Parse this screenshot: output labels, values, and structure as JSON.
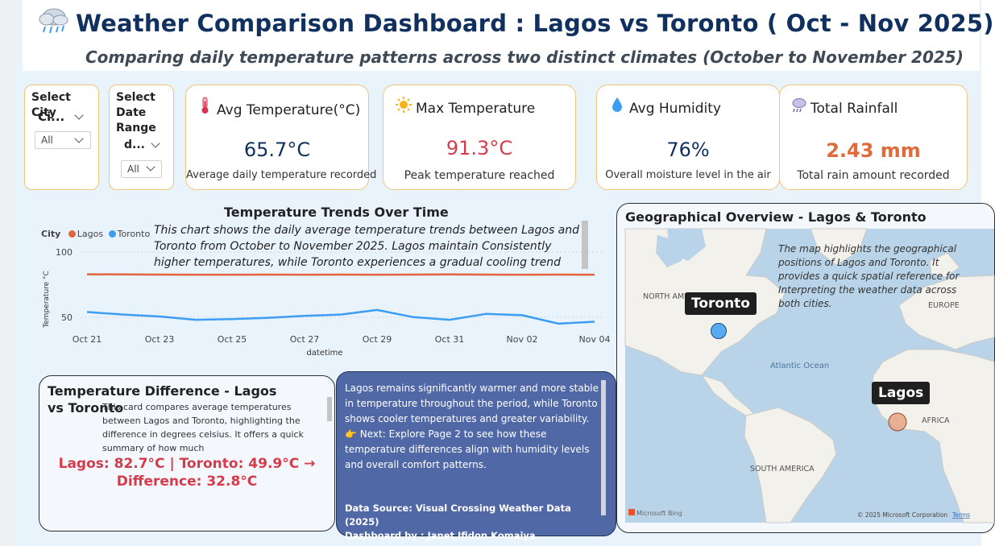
{
  "header": {
    "title": "Weather Comparison Dashboard : Lagos vs Toronto ( Oct - Nov 2025)",
    "subtitle": "Comparing daily temperature patterns across two distinct climates (October to November 2025)"
  },
  "slicers": {
    "city": {
      "label": "Select City",
      "selected": "Ci...",
      "option": "All"
    },
    "date": {
      "label": "Select Date Range",
      "selected": "d...",
      "option": "All"
    }
  },
  "kpis": [
    {
      "icon": "thermometer-icon",
      "title": "Avg Temperature(°C)",
      "value": "65.7°C",
      "caption": "Average daily temperature recorded",
      "color": "#10305f"
    },
    {
      "icon": "sun-icon",
      "title": "Max Temperature",
      "value": "91.3°C",
      "caption": "Peak temperature reached",
      "color": "#d43b4b"
    },
    {
      "icon": "droplet-icon",
      "title": "Avg Humidity",
      "value": "76%",
      "caption": "Overall moisture level in the air",
      "color": "#10305f"
    },
    {
      "icon": "rain-cloud-icon",
      "title": "Total Rainfall",
      "value": "2.43 mm",
      "caption": "Total rain amount recorded",
      "color": "#e06a3a"
    }
  ],
  "trend": {
    "title": "Temperature Trends Over Time",
    "legend_title": "City",
    "note": "This chart shows the daily average temperature trends between Lagos and Toronto from October to November 2025. Lagos maintain Consistently higher temperatures, while Toronto experiences a gradual cooling trend"
  },
  "chart_data": {
    "type": "line",
    "title": "Temperature Trends Over Time",
    "xlabel": "datetime",
    "ylabel": "Temperature °C",
    "ylim": [
      40,
      100
    ],
    "y_ticks": [
      50,
      100
    ],
    "x_ticks": [
      "Oct 21",
      "Oct 23",
      "Oct 25",
      "Oct 27",
      "Oct 29",
      "Oct 31",
      "Nov 02",
      "Nov 04"
    ],
    "x": [
      "Oct 21",
      "Oct 22",
      "Oct 23",
      "Oct 24",
      "Oct 25",
      "Oct 26",
      "Oct 27",
      "Oct 28",
      "Oct 29",
      "Oct 30",
      "Oct 31",
      "Nov 01",
      "Nov 02",
      "Nov 03",
      "Nov 04"
    ],
    "legend": "top-left",
    "grid": true,
    "series": [
      {
        "name": "Lagos",
        "color": "#e0643c",
        "values": [
          82.9,
          82.8,
          82.7,
          82.6,
          82.6,
          82.7,
          82.6,
          82.7,
          82.6,
          82.7,
          82.8,
          82.7,
          82.6,
          82.7,
          82.6
        ]
      },
      {
        "name": "Toronto",
        "color": "#3d9df2",
        "values": [
          54,
          52,
          50.5,
          48,
          48.5,
          49.5,
          51,
          52,
          55.5,
          50,
          48,
          52.5,
          51.5,
          45,
          46.5
        ]
      }
    ]
  },
  "difference": {
    "title": "Temperature Difference - Lagos vs Toronto",
    "desc": "This card compares average temperatures between Lagos and Toronto, highlighting the difference in degrees celsius. It offers a quick summary of how much",
    "line1": "Lagos: 82.7°C | Toronto: 49.9°C →",
    "line2": "Difference: 32.8°C"
  },
  "insight": {
    "text": "Lagos remains significantly warmer and more stable in temperature throughout the period, while Toronto shows cooler temperatures and greater variability.",
    "next": "👉 Next: Explore Page 2 to see how these temperature differences align with humidity levels and overall comfort patterns.",
    "source": "Data Source: Visual Crossing Weather Data (2025)",
    "author": "Dashboard by :  Janet Ifidon Komaiya"
  },
  "map": {
    "title": "Geographical Overview - Lagos & Toronto",
    "note": "The map highlights the geographical positions of Lagos and Toronto. It provides a quick spatial reference for Interpreting the weather data across both cities.",
    "labels": {
      "north_america": "NORTH AMERICA",
      "europe": "EUROPE",
      "atlantic": "Atlantic Ocean",
      "africa": "AFRICA",
      "south_america": "SOUTH AMERICA",
      "bing": "Microsoft Bing",
      "copyright": "© 2025 Microsoft Corporation",
      "terms": "Terms"
    },
    "cities": [
      {
        "name": "Toronto",
        "color": "#3d9df2"
      },
      {
        "name": "Lagos",
        "color": "#e9a98a"
      }
    ]
  }
}
